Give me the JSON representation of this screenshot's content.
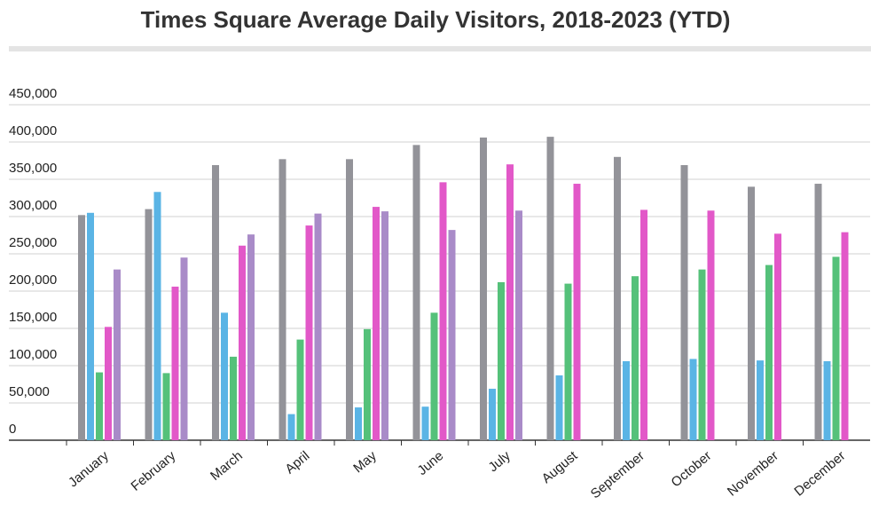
{
  "chart_data": {
    "type": "bar",
    "title": "Times Square Average Daily Visitors, 2018-2023 (YTD)",
    "categories": [
      "January",
      "February",
      "March",
      "April",
      "May",
      "June",
      "July",
      "August",
      "September",
      "October",
      "November",
      "December"
    ],
    "series": [
      {
        "color": "#939399",
        "values": [
          302000,
          310000,
          369000,
          377000,
          377000,
          396000,
          406000,
          407000,
          380000,
          369000,
          340000,
          344000
        ]
      },
      {
        "color": "#5ab4e5",
        "values": [
          305000,
          333000,
          171000,
          35000,
          44000,
          45000,
          69000,
          87000,
          106000,
          109000,
          107000,
          106000
        ]
      },
      {
        "color": "#55c17a",
        "values": [
          91000,
          90000,
          112000,
          135000,
          149000,
          171000,
          212000,
          210000,
          220000,
          229000,
          235000,
          246000
        ]
      },
      {
        "color": "#e258c8",
        "values": [
          152000,
          206000,
          261000,
          288000,
          313000,
          346000,
          370000,
          344000,
          309000,
          308000,
          277000,
          279000
        ]
      },
      {
        "color": "#a98bc8",
        "values": [
          229000,
          245000,
          276000,
          304000,
          307000,
          282000,
          308000,
          null,
          null,
          null,
          null,
          null
        ]
      }
    ],
    "ylim": [
      0,
      450000
    ],
    "yticks": [
      0,
      {
        "value": 50000,
        "label": "50,000"
      },
      {
        "value": 100000,
        "label": "100,000"
      },
      {
        "value": 150000,
        "label": "150,000"
      },
      {
        "value": 200000,
        "label": "200,000"
      },
      {
        "value": 250000,
        "label": "250,000"
      },
      {
        "value": 300000,
        "label": "300,000"
      },
      {
        "value": 350000,
        "label": "350,000"
      },
      {
        "value": 400000,
        "label": "400,000"
      },
      {
        "value": 450000,
        "label": "450,000"
      }
    ],
    "grid": true
  }
}
